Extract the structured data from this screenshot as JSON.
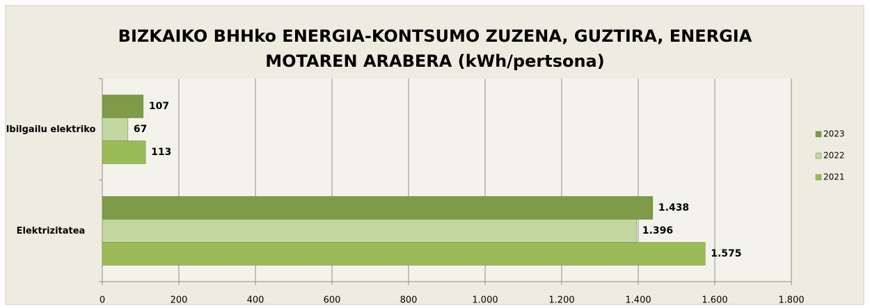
{
  "chart_data": {
    "type": "bar",
    "orientation": "horizontal",
    "title": "BIZKAIKO BHHko ENERGIA-KONTSUMO ZUZENA, GUZTIRA, ENERGIA MOTAREN ARABERA (kWh/pertsona)",
    "categories": [
      "Ibilgailu elektriko",
      "Elektrizitatea"
    ],
    "series": [
      {
        "name": "2023",
        "color": "#7f9a48",
        "values": [
          107,
          1438
        ],
        "value_labels": [
          "107",
          "1.438"
        ]
      },
      {
        "name": "2022",
        "color": "#c4d6a0",
        "values": [
          67,
          1396
        ],
        "value_labels": [
          "67",
          "1.396"
        ]
      },
      {
        "name": "2021",
        "color": "#9bbb59",
        "values": [
          113,
          1575
        ],
        "value_labels": [
          "113",
          "1.575"
        ]
      }
    ],
    "xlim": [
      0,
      1800
    ],
    "xticks": [
      0,
      200,
      400,
      600,
      800,
      {
        "value": 1000,
        "label": "1.000"
      },
      {
        "value": 1200,
        "label": "1.200"
      },
      {
        "value": 1400,
        "label": "1.400"
      },
      {
        "value": 1600,
        "label": "1.600"
      },
      {
        "value": 1800,
        "label": "1.800"
      }
    ],
    "grid": true,
    "legend": "right"
  }
}
